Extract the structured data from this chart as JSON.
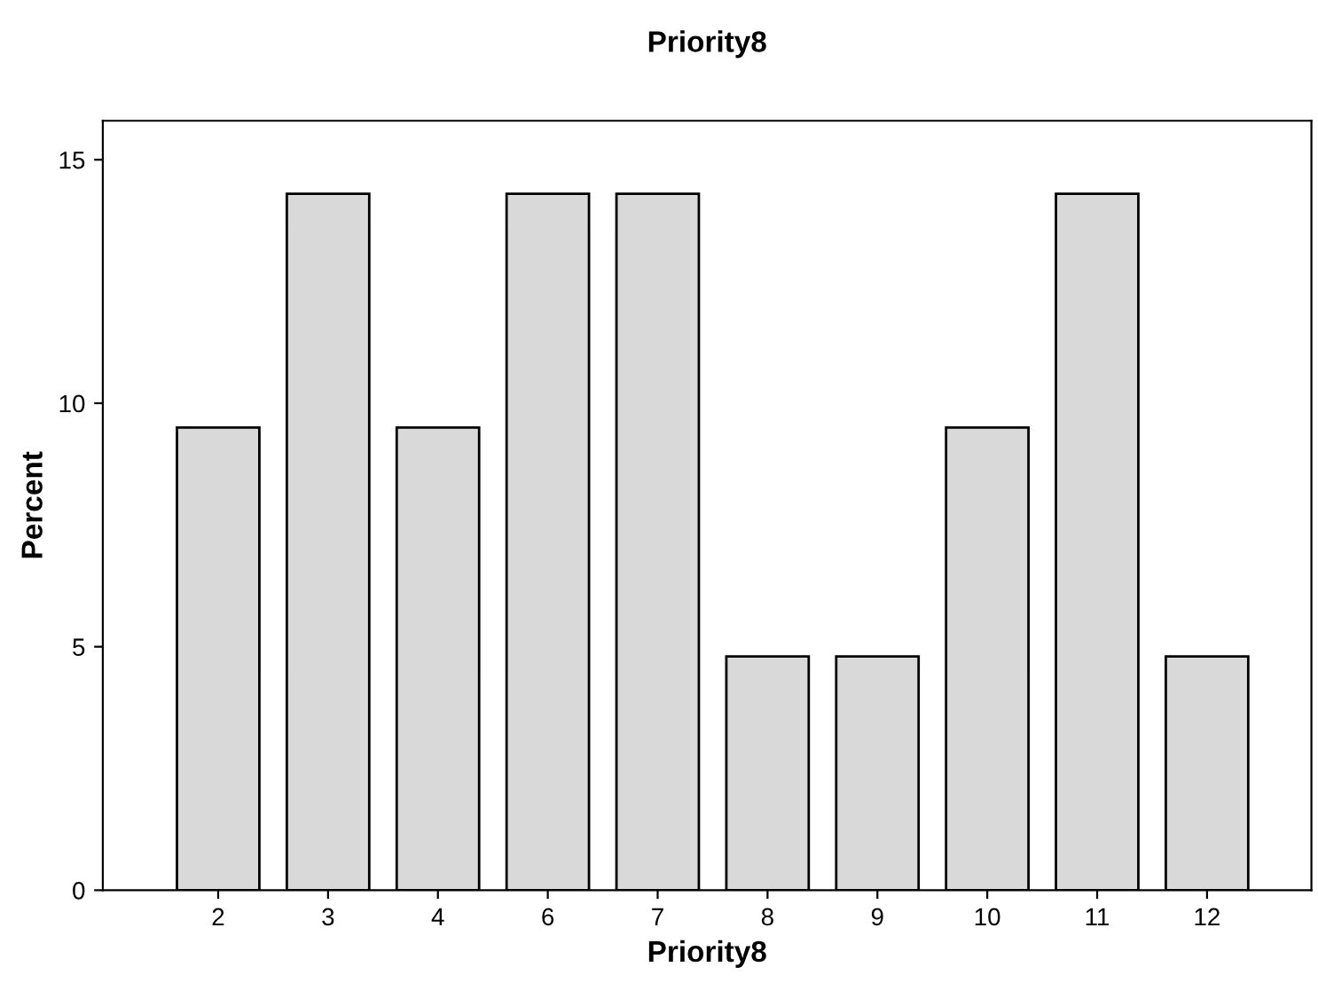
{
  "chart_data": {
    "type": "bar",
    "title": "Priority8",
    "xlabel": "Priority8",
    "ylabel": "Percent",
    "categories": [
      "2",
      "3",
      "4",
      "6",
      "7",
      "8",
      "9",
      "10",
      "11",
      "12"
    ],
    "values": [
      9.5,
      14.3,
      9.5,
      14.3,
      14.3,
      4.8,
      4.8,
      9.5,
      14.3,
      4.8
    ],
    "color": "#d9d9d9",
    "ylim": [
      0,
      15.8
    ],
    "yticks": [
      0,
      5,
      10,
      15
    ],
    "grid": false
  }
}
